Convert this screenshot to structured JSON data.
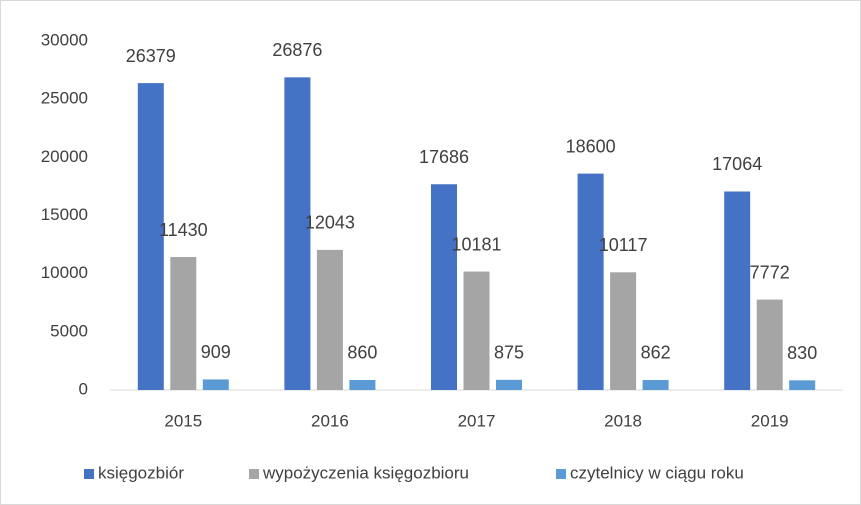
{
  "chart_data": {
    "type": "bar",
    "categories": [
      "2015",
      "2016",
      "2017",
      "2018",
      "2019"
    ],
    "series": [
      {
        "name": "księgozbiór",
        "color": "#4472c4",
        "values": [
          26379,
          26876,
          17686,
          18600,
          17064
        ]
      },
      {
        "name": "wypożyczenia księgozbioru",
        "color": "#a5a5a5",
        "values": [
          11430,
          12043,
          10181,
          10117,
          7772
        ]
      },
      {
        "name": "czytelnicy w ciągu roku",
        "color": "#5b9bd5",
        "values": [
          909,
          860,
          875,
          862,
          830
        ]
      }
    ],
    "ylim": [
      0,
      30000
    ],
    "yticks": [
      0,
      5000,
      10000,
      15000,
      20000,
      25000,
      30000
    ],
    "grid": false,
    "legend": "bottom",
    "data_labels": true
  }
}
